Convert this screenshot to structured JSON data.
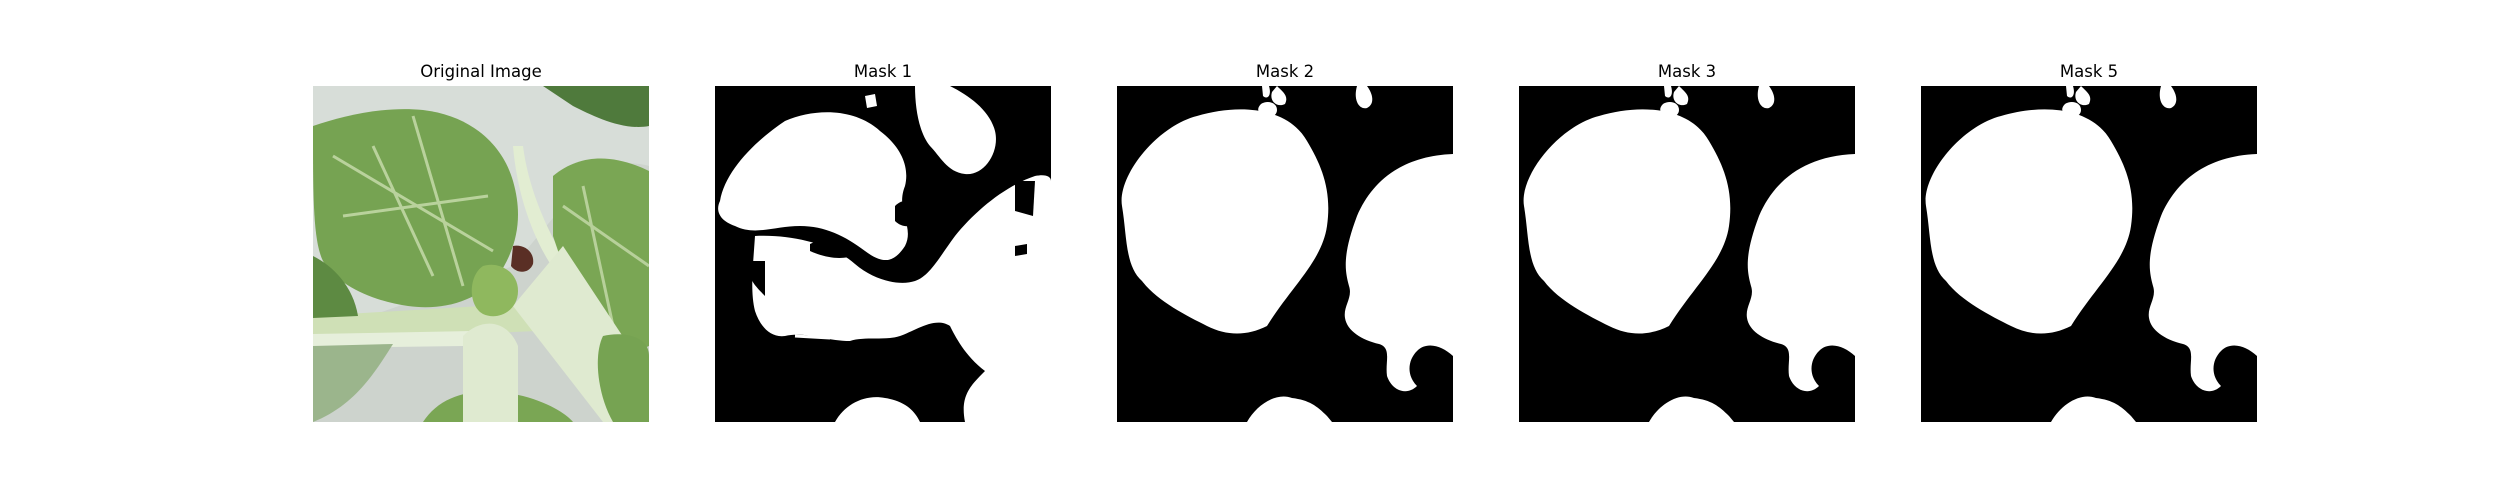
{
  "figure": {
    "panels": [
      {
        "title": "Original Image"
      },
      {
        "title": "Mask 1"
      },
      {
        "title": "Mask 2"
      },
      {
        "title": "Mask 3"
      },
      {
        "title": "Mask 5"
      }
    ]
  },
  "colors": {
    "background": "#ffffff",
    "mask_foreground": "#ffffff",
    "mask_background": "#000000",
    "leaf_green": "#6f9a4a",
    "stem": "#d8e6c4",
    "backdrop": "#c9cfc9"
  }
}
